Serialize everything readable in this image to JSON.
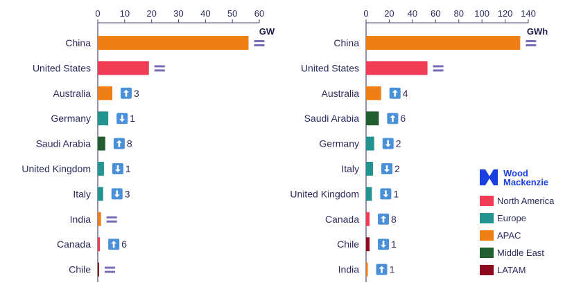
{
  "colors": {
    "North America": "#F03C55",
    "Europe": "#23948F",
    "APAC": "#F07E16",
    "Middle East": "#235E30",
    "LATAM": "#8B0A1E",
    "text": "#2b2b5e",
    "equal_sign": "#7B6BB5",
    "arrow_badge": "#4A90D9"
  },
  "legend": {
    "logo": [
      "Wood",
      "Mackenzie"
    ],
    "entries": [
      "North America",
      "Europe",
      "APAC",
      "Middle East",
      "LATAM"
    ],
    "placement": "bottom-right"
  },
  "chart_data": [
    {
      "type": "bar",
      "orientation": "horizontal",
      "unit": "GW",
      "xlim": [
        0,
        60
      ],
      "ticks": [
        0,
        10,
        20,
        30,
        40,
        50,
        60
      ],
      "grid": false,
      "categories": [
        "China",
        "United States",
        "Australia",
        "Germany",
        "Saudi Arabia",
        "United Kingdom",
        "Italy",
        "India",
        "Canada",
        "Chile"
      ],
      "regions": [
        "APAC",
        "North America",
        "APAC",
        "Europe",
        "Middle East",
        "Europe",
        "Europe",
        "APAC",
        "North America",
        "LATAM"
      ],
      "values": [
        56,
        19,
        5.4,
        3.9,
        2.8,
        2.3,
        2,
        1.2,
        0.8,
        0.5
      ],
      "rank_change": [
        {
          "dir": "same",
          "n": ""
        },
        {
          "dir": "same",
          "n": ""
        },
        {
          "dir": "up",
          "n": "3"
        },
        {
          "dir": "down",
          "n": "1"
        },
        {
          "dir": "up",
          "n": "8"
        },
        {
          "dir": "down",
          "n": "1"
        },
        {
          "dir": "down",
          "n": "3"
        },
        {
          "dir": "same",
          "n": ""
        },
        {
          "dir": "up",
          "n": "6"
        },
        {
          "dir": "same",
          "n": ""
        }
      ]
    },
    {
      "type": "bar",
      "orientation": "horizontal",
      "unit": "GWh",
      "xlim": [
        0,
        140
      ],
      "ticks": [
        0,
        20,
        40,
        60,
        80,
        100,
        120,
        140
      ],
      "grid": false,
      "categories": [
        "China",
        "United States",
        "Australia",
        "Saudi Arabia",
        "Germany",
        "Italy",
        "United Kingdom",
        "Canada",
        "Chile",
        "India"
      ],
      "regions": [
        "APAC",
        "North America",
        "APAC",
        "Middle East",
        "Europe",
        "Europe",
        "Europe",
        "North America",
        "LATAM",
        "APAC"
      ],
      "values": [
        133,
        53,
        13,
        11,
        7,
        6,
        5,
        3,
        3,
        1.5
      ],
      "rank_change": [
        {
          "dir": "same",
          "n": ""
        },
        {
          "dir": "same",
          "n": ""
        },
        {
          "dir": "up",
          "n": "4"
        },
        {
          "dir": "up",
          "n": "6"
        },
        {
          "dir": "down",
          "n": "2"
        },
        {
          "dir": "down",
          "n": "2"
        },
        {
          "dir": "down",
          "n": "1"
        },
        {
          "dir": "up",
          "n": "8"
        },
        {
          "dir": "down",
          "n": "1"
        },
        {
          "dir": "up",
          "n": "1"
        }
      ]
    }
  ]
}
